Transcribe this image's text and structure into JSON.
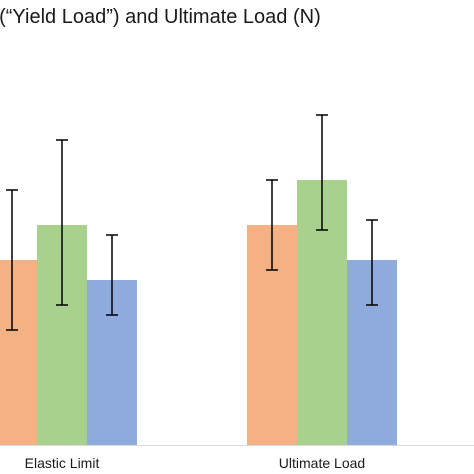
{
  "chart_data": {
    "type": "bar",
    "title": ": (“Yield Load”) and Ultimate Load (N)",
    "categories": [
      "Elastic Limit",
      "Ultimate Load"
    ],
    "series": [
      {
        "color": "#f4b183",
        "values": [
          1.85,
          2.2
        ],
        "error_low": [
          1.15,
          1.75
        ],
        "error_high": [
          2.55,
          2.65
        ]
      },
      {
        "color": "#a9d18e",
        "values": [
          2.2,
          2.65
        ],
        "error_low": [
          1.4,
          2.15
        ],
        "error_high": [
          3.05,
          3.3
        ]
      },
      {
        "color": "#8faadc",
        "values": [
          1.65,
          1.85
        ],
        "error_low": [
          1.3,
          1.4
        ],
        "error_high": [
          2.1,
          2.25
        ]
      }
    ],
    "ylim": [
      0,
      3.8
    ],
    "grid": false,
    "legend": "none"
  }
}
